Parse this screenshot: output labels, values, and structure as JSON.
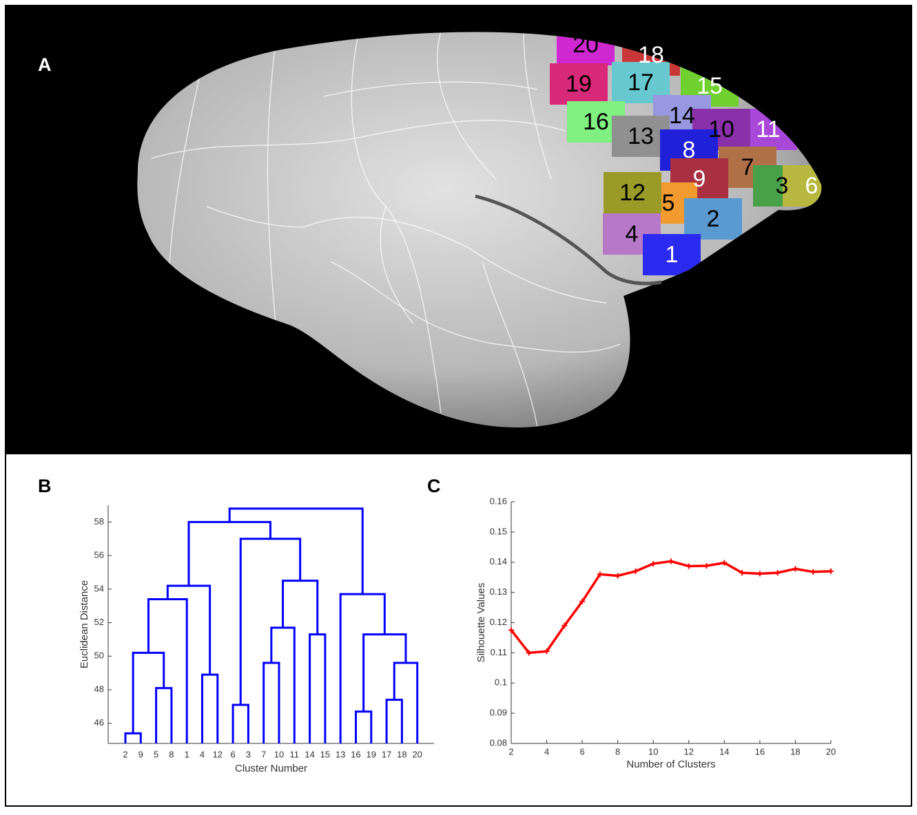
{
  "panels": [
    "A",
    "B",
    "C"
  ],
  "brain": {
    "regions": [
      {
        "label": "1",
        "color": "#2a2af0",
        "text_color": "#ffffff"
      },
      {
        "label": "2",
        "color": "#5a9ad0",
        "text_color": "#000000"
      },
      {
        "label": "3",
        "color": "#48a048",
        "text_color": "#000000"
      },
      {
        "label": "4",
        "color": "#b878c8",
        "text_color": "#000000"
      },
      {
        "label": "5",
        "color": "#f09a30",
        "text_color": "#000000"
      },
      {
        "label": "6",
        "color": "#b8b840",
        "text_color": "#ffffff"
      },
      {
        "label": "7",
        "color": "#b07048",
        "text_color": "#000000"
      },
      {
        "label": "8",
        "color": "#2020d8",
        "text_color": "#ffffff"
      },
      {
        "label": "9",
        "color": "#a83040",
        "text_color": "#ffffff"
      },
      {
        "label": "10",
        "color": "#8a30a8",
        "text_color": "#000000"
      },
      {
        "label": "11",
        "color": "#a848d8",
        "text_color": "#ffffff"
      },
      {
        "label": "12",
        "color": "#9a9a28",
        "text_color": "#000000"
      },
      {
        "label": "13",
        "color": "#909090",
        "text_color": "#000000"
      },
      {
        "label": "14",
        "color": "#9898e0",
        "text_color": "#000000"
      },
      {
        "label": "15",
        "color": "#70d030",
        "text_color": "#ffffff"
      },
      {
        "label": "16",
        "color": "#80f080",
        "text_color": "#000000"
      },
      {
        "label": "17",
        "color": "#68c8d0",
        "text_color": "#000000"
      },
      {
        "label": "18",
        "color": "#c83838",
        "text_color": "#ffffff"
      },
      {
        "label": "19",
        "color": "#d82878",
        "text_color": "#000000"
      },
      {
        "label": "20",
        "color": "#d028d0",
        "text_color": "#000000"
      }
    ]
  },
  "chart_data": [
    {
      "type": "dendrogram",
      "xlabel": "Cluster Number",
      "ylabel": "Euclidean Distance",
      "color": "#0000ff",
      "categories": [
        "2",
        "9",
        "5",
        "8",
        "1",
        "4",
        "12",
        "6",
        "3",
        "7",
        "10",
        "11",
        "14",
        "15",
        "13",
        "16",
        "19",
        "17",
        "18",
        "20"
      ],
      "ylim": [
        44.8,
        59
      ],
      "yticks": [
        46,
        48,
        50,
        52,
        54,
        56,
        58
      ],
      "tree": {
        "height": 58.8,
        "children": [
          {
            "height": 58.0,
            "children": [
              {
                "height": 54.2,
                "children": [
                  {
                    "height": 53.4,
                    "children": [
                      {
                        "height": 50.2,
                        "children": [
                          {
                            "height": 45.4,
                            "children": [
                              0,
                              1
                            ]
                          },
                          {
                            "height": 48.1,
                            "children": [
                              2,
                              3
                            ]
                          }
                        ]
                      },
                      4
                    ]
                  },
                  {
                    "height": 48.9,
                    "children": [
                      5,
                      6
                    ]
                  }
                ]
              },
              {
                "height": 57.0,
                "children": [
                  {
                    "height": 47.1,
                    "children": [
                      7,
                      8
                    ]
                  },
                  {
                    "height": 54.5,
                    "children": [
                      {
                        "height": 51.7,
                        "children": [
                          {
                            "height": 49.6,
                            "children": [
                              9,
                              10
                            ]
                          },
                          11
                        ]
                      },
                      {
                        "height": 51.3,
                        "children": [
                          12,
                          13
                        ]
                      }
                    ]
                  }
                ]
              }
            ]
          },
          {
            "height": 53.7,
            "children": [
              14,
              {
                "height": 51.3,
                "children": [
                  {
                    "height": 46.7,
                    "children": [
                      15,
                      16
                    ]
                  },
                  {
                    "height": 49.6,
                    "children": [
                      {
                        "height": 47.4,
                        "children": [
                          17,
                          18
                        ]
                      },
                      19
                    ]
                  }
                ]
              }
            ]
          }
        ]
      }
    },
    {
      "type": "line",
      "xlabel": "Number of Clusters",
      "ylabel": "Silhouette Values",
      "color": "#ff0000",
      "x": [
        2,
        3,
        4,
        5,
        6,
        7,
        8,
        9,
        10,
        11,
        12,
        13,
        14,
        15,
        16,
        17,
        18,
        19,
        20
      ],
      "values": [
        0.1175,
        0.11,
        0.1105,
        0.119,
        0.127,
        0.136,
        0.1355,
        0.137,
        0.1395,
        0.1403,
        0.1387,
        0.1388,
        0.1398,
        0.1365,
        0.1362,
        0.1365,
        0.1378,
        0.1368,
        0.137
      ],
      "xlim": [
        2,
        20
      ],
      "xticks": [
        2,
        4,
        6,
        8,
        10,
        12,
        14,
        16,
        18,
        20
      ],
      "ylim": [
        0.08,
        0.16
      ],
      "yticks": [
        0.08,
        0.09,
        0.1,
        0.11,
        0.12,
        0.13,
        0.14,
        0.15,
        0.16
      ]
    }
  ]
}
